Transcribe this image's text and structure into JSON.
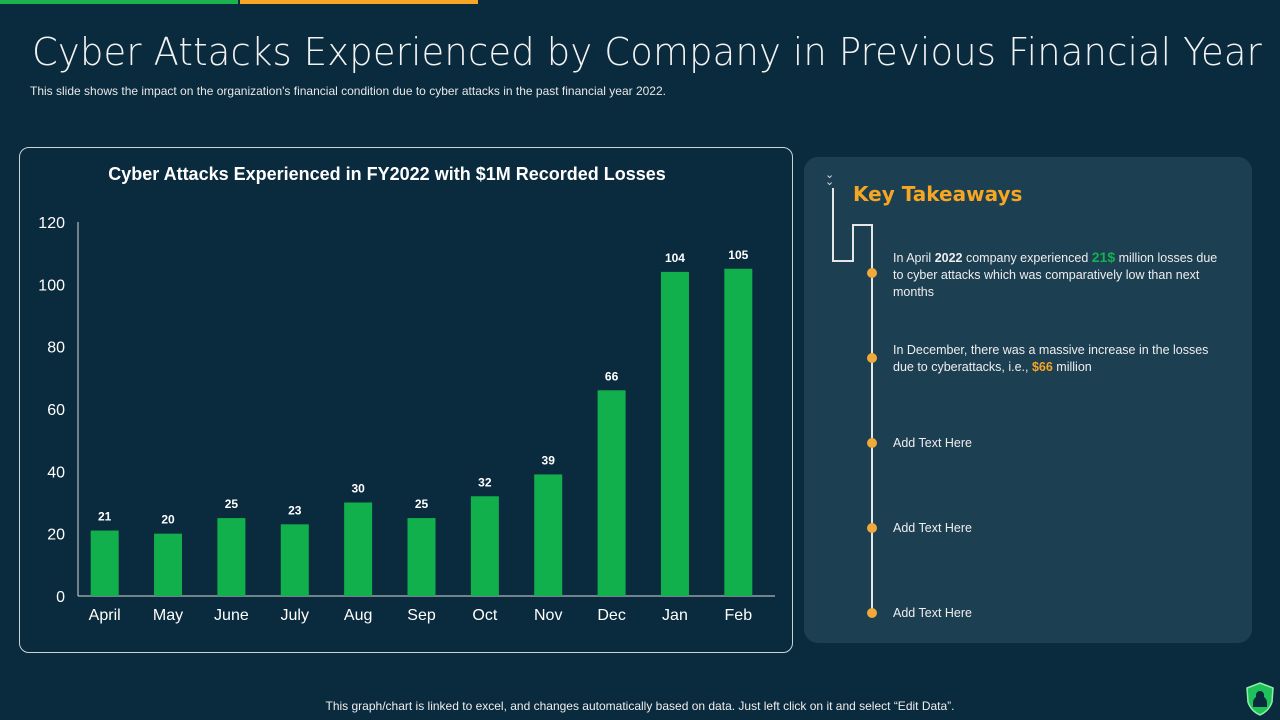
{
  "header": {
    "title": "Cyber Attacks Experienced by Company in Previous Financial Year",
    "subtitle": "This slide shows the impact on the organization's financial condition due to cyber attacks in the past financial year 2022."
  },
  "colors": {
    "green": "#12b04c",
    "orange": "#f5a623",
    "background": "#0a2a3d",
    "panel": "#1d3f52"
  },
  "chart_data": {
    "type": "bar",
    "title": "Cyber Attacks Experienced in FY2022 with $1M Recorded Losses",
    "categories": [
      "April",
      "May",
      "June",
      "July",
      "Aug",
      "Sep",
      "Oct",
      "Nov",
      "Dec",
      "Jan",
      "Feb"
    ],
    "values": [
      21,
      20,
      25,
      23,
      30,
      25,
      32,
      39,
      66,
      104,
      105
    ],
    "ylim": [
      0,
      120
    ],
    "yticks": [
      0,
      20,
      40,
      60,
      80,
      100,
      120
    ],
    "grid": false,
    "data_labels": true,
    "color": "#12b04c"
  },
  "takeaways": {
    "heading": "Key Takeaways",
    "items": [
      {
        "parts": [
          "In April ",
          "2022",
          " company experienced ",
          "21$",
          " million losses due to cyber attacks which was comparatively  low than next months"
        ]
      },
      {
        "parts": [
          "In December, there was a massive increase in the losses due to cyberattacks, i.e., ",
          "$66",
          " million"
        ]
      },
      {
        "text": "Add Text Here"
      },
      {
        "text": "Add Text Here"
      },
      {
        "text": "Add Text Here"
      }
    ]
  },
  "footer": "This graph/chart is linked to excel, and changes automatically based on data. Just left click on it and select “Edit Data”.",
  "icons": {
    "chevron": "double-chevron-down-icon",
    "logo": "shield-lock-icon"
  }
}
